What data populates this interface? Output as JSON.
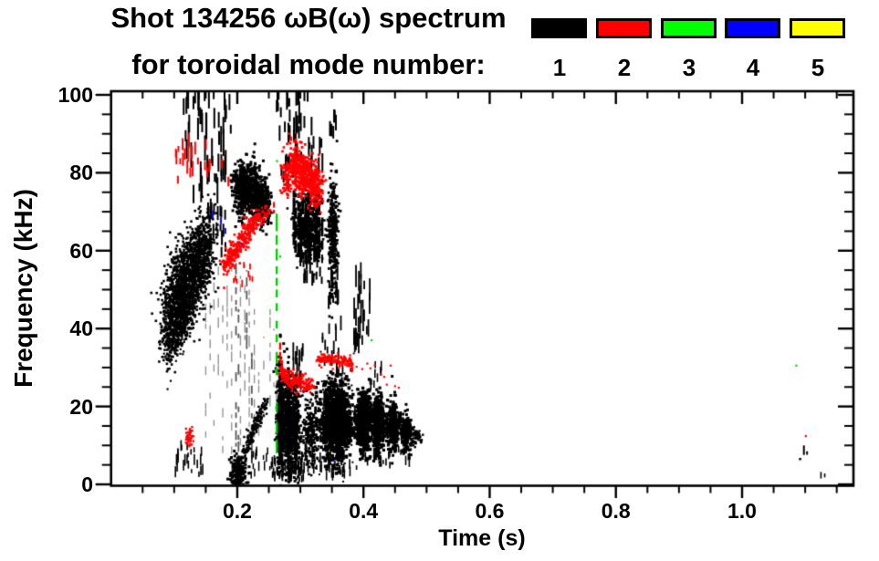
{
  "header": {
    "title_line1": "Shot 134256 ωB(ω) spectrum",
    "title_line2": "for toroidal mode number:"
  },
  "legend": {
    "entries": [
      {
        "label": "1",
        "color": "#000000"
      },
      {
        "label": "2",
        "color": "#ff0000"
      },
      {
        "label": "3",
        "color": "#00ff00"
      },
      {
        "label": "4",
        "color": "#0000ff"
      },
      {
        "label": "5",
        "color": "#ffff00"
      }
    ]
  },
  "axes": {
    "x": {
      "label": "Time (s)",
      "tick_values": [
        0.2,
        0.4,
        0.6,
        0.8,
        1.0
      ],
      "tick_labels": [
        "0.2",
        "0.4",
        "0.6",
        "0.8",
        "1.0"
      ],
      "minor_step": 0.05,
      "range": [
        0,
        1.1765
      ]
    },
    "y": {
      "label": "Frequency (kHz)",
      "tick_values": [
        0,
        20,
        40,
        60,
        80,
        100
      ],
      "tick_labels": [
        "0",
        "20",
        "40",
        "60",
        "80",
        "100"
      ],
      "minor_step": 5,
      "range": [
        0,
        101
      ]
    }
  },
  "chart_data": {
    "type": "scatter",
    "title": "Shot 134256 ωB(ω) spectrum for toroidal mode number: 1-5",
    "xlabel": "Time (s)",
    "ylabel": "Frequency (kHz)",
    "xlim": [
      0,
      1.1765
    ],
    "ylim": [
      0,
      101
    ],
    "grid": false,
    "legend_position": "top-right",
    "series_legend": [
      {
        "name": "n=1",
        "color_key": "k"
      },
      {
        "name": "n=2",
        "color_key": "r"
      },
      {
        "name": "n=3",
        "color_key": "g"
      },
      {
        "name": "n=4",
        "color_key": "b"
      },
      {
        "name": "n=5",
        "color_key": "y"
      }
    ],
    "palette": {
      "k": "#000000",
      "r": "#ff0000",
      "g": "#00cc00",
      "b": "#1111dd",
      "y": "#f0e000",
      "gy": "rgba(0,0,0,0.42)",
      "kd": "rgba(0,0,0,0.66)"
    },
    "clusters": [
      {
        "type": "diag",
        "c": "k",
        "t0": 0.085,
        "f0": 41,
        "t1": 0.157,
        "f1": 62,
        "st": 0.007,
        "sf": 5.5,
        "n": 1500,
        "d": 2.6
      },
      {
        "type": "diag",
        "c": "k",
        "t0": 0.09,
        "f0": 34,
        "t1": 0.128,
        "f1": 45,
        "st": 0.004,
        "sf": 3,
        "n": 260,
        "d": 2.2
      },
      {
        "type": "blob",
        "c": "k",
        "t": 0.118,
        "f": 52,
        "st": 0.01,
        "sf": 6,
        "n": 300,
        "d": 2.6
      },
      {
        "type": "specks",
        "c": "k",
        "t0": 0.1,
        "t1": 0.148,
        "f0": 1.5,
        "f1": 9,
        "n": 26,
        "l0": 1,
        "l1": 3,
        "lw": 1.6
      },
      {
        "type": "specks",
        "c": "k",
        "t0": 0.113,
        "t1": 0.19,
        "f0": 72,
        "f1": 99,
        "n": 55,
        "l0": 2,
        "l1": 7,
        "lw": 2
      },
      {
        "type": "specks",
        "c": "k",
        "t0": 0.152,
        "t1": 0.182,
        "f0": 58,
        "f1": 70,
        "n": 20,
        "l0": 1.5,
        "l1": 4,
        "lw": 2
      },
      {
        "type": "blob",
        "c": "k",
        "t": 0.205,
        "f": 75.5,
        "st": 0.007,
        "sf": 3.6,
        "n": 230,
        "d": 3
      },
      {
        "type": "blob",
        "c": "k",
        "t": 0.219,
        "f": 77,
        "st": 0.007,
        "sf": 3.4,
        "n": 230,
        "d": 3
      },
      {
        "type": "blob",
        "c": "k",
        "t": 0.233,
        "f": 74.5,
        "st": 0.006,
        "sf": 3.2,
        "n": 180,
        "d": 3
      },
      {
        "type": "blob",
        "c": "k",
        "t": 0.244,
        "f": 71.5,
        "st": 0.005,
        "sf": 2.6,
        "n": 120,
        "d": 3
      },
      {
        "type": "vlines",
        "c": "gy",
        "lw": 1.4,
        "cov": 0.5,
        "lines": [
          [
            0.15,
            12,
            50
          ],
          [
            0.157,
            22,
            55
          ],
          [
            0.163,
            15,
            52
          ],
          [
            0.17,
            28,
            56
          ],
          [
            0.177,
            8,
            46
          ],
          [
            0.184,
            18,
            56
          ],
          [
            0.191,
            4,
            57
          ],
          [
            0.205,
            10,
            55
          ],
          [
            0.212,
            24,
            57
          ],
          [
            0.219,
            4,
            50
          ],
          [
            0.227,
            12,
            46
          ],
          [
            0.234,
            8,
            40
          ],
          [
            0.242,
            15,
            38
          ],
          [
            0.252,
            20,
            45
          ],
          [
            0.258,
            25,
            40
          ],
          [
            0.262,
            20,
            34
          ]
        ]
      },
      {
        "type": "vlines",
        "c": "kd",
        "lw": 1.8,
        "cov": 0.6,
        "lines": [
          [
            0.198,
            1,
            58
          ],
          [
            0.202,
            5,
            45
          ],
          [
            0.215,
            30,
            55
          ],
          [
            0.223,
            8,
            38
          ]
        ]
      },
      {
        "type": "blob",
        "c": "k",
        "t": 0.202,
        "f": 3.2,
        "st": 0.006,
        "sf": 2,
        "n": 170,
        "d": 3
      },
      {
        "type": "diag",
        "c": "k",
        "t0": 0.211,
        "f0": 8.5,
        "t1": 0.247,
        "f1": 21.5,
        "st": 0.0018,
        "sf": 1.1,
        "n": 170,
        "d": 2.4
      },
      {
        "type": "specks",
        "c": "k",
        "t0": 0.218,
        "t1": 0.26,
        "f0": 1,
        "f1": 8,
        "n": 18,
        "l0": 1,
        "l1": 2.5,
        "lw": 1.5
      },
      {
        "type": "stripes",
        "c": "k",
        "t0": 0.287,
        "t1": 0.336,
        "k": 13,
        "f0": 57,
        "f1": 76,
        "fv": 6,
        "lw": 3,
        "cov": 0.85
      },
      {
        "type": "blob",
        "c": "k",
        "t": 0.311,
        "f": 66,
        "st": 0.011,
        "sf": 4.5,
        "n": 380,
        "d": 2.6
      },
      {
        "type": "specks",
        "c": "k",
        "t0": 0.3,
        "t1": 0.335,
        "f0": 51,
        "f1": 57,
        "n": 16,
        "l0": 1.5,
        "l1": 4,
        "lw": 2
      },
      {
        "type": "specks",
        "c": "k",
        "t0": 0.27,
        "t1": 0.335,
        "f0": 75,
        "f1": 88,
        "n": 24,
        "l0": 1.5,
        "l1": 5,
        "lw": 2
      },
      {
        "type": "specks",
        "c": "k",
        "t0": 0.262,
        "t1": 0.318,
        "f0": 87,
        "f1": 100,
        "n": 28,
        "l0": 2,
        "l1": 6,
        "lw": 2
      },
      {
        "type": "specks",
        "c": "k",
        "t0": 0.345,
        "t1": 0.357,
        "f0": 86,
        "f1": 94,
        "n": 8,
        "l0": 2,
        "l1": 4,
        "lw": 2
      },
      {
        "type": "blob",
        "c": "k",
        "t": 0.352,
        "f": 65,
        "st": 0.004,
        "sf": 7.5,
        "n": 300,
        "d": 2.8
      },
      {
        "type": "specks",
        "c": "k",
        "t0": 0.344,
        "t1": 0.362,
        "f0": 44,
        "f1": 54,
        "n": 14,
        "l0": 1.5,
        "l1": 4,
        "lw": 2
      },
      {
        "type": "blob",
        "c": "k",
        "t": 0.269,
        "f": 17,
        "st": 0.0032,
        "sf": 6.5,
        "n": 480,
        "d": 3
      },
      {
        "type": "blob",
        "c": "k",
        "t": 0.281,
        "f": 15.5,
        "st": 0.003,
        "sf": 6,
        "n": 420,
        "d": 3
      },
      {
        "type": "blob",
        "c": "k",
        "t": 0.292,
        "f": 14.5,
        "st": 0.0035,
        "sf": 5.5,
        "n": 330,
        "d": 2.8
      },
      {
        "type": "blob",
        "c": "k",
        "t": 0.316,
        "f": 13.5,
        "st": 0.007,
        "sf": 4.5,
        "n": 260,
        "d": 2.6
      },
      {
        "type": "specks",
        "c": "k",
        "t0": 0.255,
        "t1": 0.305,
        "f0": 0.5,
        "f1": 5,
        "n": 40,
        "l0": 1,
        "l1": 3,
        "lw": 1.8
      },
      {
        "type": "specks",
        "c": "k",
        "t0": 0.288,
        "t1": 0.305,
        "f0": 23,
        "f1": 33,
        "n": 14,
        "l0": 2,
        "l1": 5,
        "lw": 1.8
      },
      {
        "type": "blob",
        "c": "k",
        "t": 0.356,
        "f": 16.5,
        "st": 0.011,
        "sf": 4.8,
        "n": 950,
        "d": 3.6
      },
      {
        "type": "blob",
        "c": "k",
        "t": 0.356,
        "f": 17,
        "st": 0.014,
        "sf": 7,
        "n": 220,
        "d": 2
      },
      {
        "type": "blob",
        "c": "k",
        "t": 0.401,
        "f": 16.5,
        "st": 0.0058,
        "sf": 4.2,
        "n": 470,
        "d": 3.4
      },
      {
        "type": "blob",
        "c": "k",
        "t": 0.424,
        "f": 15.5,
        "st": 0.005,
        "sf": 3.6,
        "n": 360,
        "d": 3.2
      },
      {
        "type": "blob",
        "c": "k",
        "t": 0.447,
        "f": 14.8,
        "st": 0.0045,
        "sf": 3.2,
        "n": 290,
        "d": 3
      },
      {
        "type": "blob",
        "c": "k",
        "t": 0.468,
        "f": 13,
        "st": 0.004,
        "sf": 2.4,
        "n": 170,
        "d": 3
      },
      {
        "type": "diag",
        "c": "k",
        "t0": 0.475,
        "f0": 12.5,
        "t1": 0.49,
        "f1": 12,
        "st": 0.003,
        "sf": 1.4,
        "n": 60,
        "d": 2.4
      },
      {
        "type": "specks",
        "c": "k",
        "t0": 0.33,
        "t1": 0.47,
        "f0": 10,
        "f1": 17,
        "n": 110,
        "l0": 1,
        "l1": 3,
        "lw": 2
      },
      {
        "type": "specks",
        "c": "k",
        "t0": 0.3,
        "t1": 0.39,
        "f0": 0.5,
        "f1": 7,
        "n": 40,
        "l0": 1,
        "l1": 3,
        "lw": 1.6
      },
      {
        "type": "specks",
        "c": "k",
        "t0": 0.4,
        "t1": 0.475,
        "f0": 4,
        "f1": 9,
        "n": 22,
        "l0": 1,
        "l1": 2.5,
        "lw": 1.6
      },
      {
        "type": "specks",
        "c": "k",
        "t0": 0.385,
        "t1": 0.412,
        "f0": 30,
        "f1": 53,
        "n": 26,
        "l0": 2,
        "l1": 6,
        "lw": 1.8
      },
      {
        "type": "specks",
        "c": "k",
        "t0": 0.335,
        "t1": 0.368,
        "f0": 27,
        "f1": 40,
        "n": 18,
        "l0": 1.5,
        "l1": 4,
        "lw": 1.8
      },
      {
        "type": "specks",
        "c": "k",
        "t0": 0.41,
        "t1": 0.43,
        "f0": 24,
        "f1": 30,
        "n": 10,
        "l0": 1,
        "l1": 3,
        "lw": 1.6
      },
      {
        "type": "vlines",
        "c": "k",
        "lw": 2,
        "cov": 0.7,
        "lines": [
          [
            1.098,
            5,
            10
          ],
          [
            1.103,
            5,
            8.5
          ]
        ]
      },
      {
        "type": "dots",
        "c": "k",
        "d": 2.5,
        "pts": [
          [
            1.092,
            6.5
          ]
        ]
      },
      {
        "type": "vlines",
        "c": "k",
        "lw": 1.6,
        "cov": 0.8,
        "lines": [
          [
            1.125,
            1.5,
            3.2
          ],
          [
            1.131,
            1.8,
            2.8
          ],
          [
            1.14,
            1.4,
            2.6
          ]
        ]
      },
      {
        "type": "specks",
        "c": "r",
        "t0": 0.102,
        "t1": 0.158,
        "f0": 77,
        "f1": 87,
        "n": 22,
        "l0": 1.5,
        "l1": 4,
        "lw": 2
      },
      {
        "type": "vlines",
        "c": "r",
        "lw": 2.2,
        "cov": 0.8,
        "lines": [
          [
            0.176,
            80,
            83.5
          ],
          [
            0.186,
            76.5,
            79
          ]
        ]
      },
      {
        "type": "blob",
        "c": "r",
        "t": 0.125,
        "f": 12.3,
        "st": 0.004,
        "sf": 1.2,
        "n": 40,
        "d": 2.4
      },
      {
        "type": "diag",
        "c": "r",
        "t0": 0.178,
        "f0": 56,
        "t1": 0.232,
        "f1": 68.5,
        "st": 0.003,
        "sf": 1.7,
        "n": 280,
        "d": 2.6
      },
      {
        "type": "diag",
        "c": "r",
        "t0": 0.232,
        "f0": 68.5,
        "t1": 0.252,
        "f1": 70,
        "st": 0.002,
        "sf": 1.2,
        "n": 50,
        "d": 2.2
      },
      {
        "type": "specks",
        "c": "r",
        "t0": 0.19,
        "t1": 0.225,
        "f0": 50,
        "f1": 56,
        "n": 10,
        "l0": 1,
        "l1": 2,
        "lw": 1.8
      },
      {
        "type": "blob",
        "c": "r",
        "t": 0.278,
        "f": 78.5,
        "st": 0.004,
        "sf": 2.6,
        "n": 80,
        "d": 2.6
      },
      {
        "type": "blob",
        "c": "r",
        "t": 0.292,
        "f": 82,
        "st": 0.005,
        "sf": 3,
        "n": 140,
        "d": 2.8
      },
      {
        "type": "blob",
        "c": "r",
        "t": 0.305,
        "f": 80,
        "st": 0.005,
        "sf": 3,
        "n": 150,
        "d": 2.8
      },
      {
        "type": "blob",
        "c": "r",
        "t": 0.318,
        "f": 78,
        "st": 0.005,
        "sf": 2.8,
        "n": 140,
        "d": 2.8
      },
      {
        "type": "blob",
        "c": "r",
        "t": 0.329,
        "f": 76,
        "st": 0.004,
        "sf": 2.4,
        "n": 90,
        "d": 2.6
      },
      {
        "type": "vlines",
        "c": "r",
        "lw": 2.2,
        "cov": 0.8,
        "lines": [
          [
            0.258,
            69.5,
            72.5
          ]
        ]
      },
      {
        "type": "vlines",
        "c": "r",
        "lw": 2.4,
        "cov": 0.85,
        "lines": [
          [
            0.268,
            29,
            37
          ],
          [
            0.271,
            27,
            33
          ]
        ]
      },
      {
        "type": "diag",
        "c": "r",
        "t0": 0.27,
        "f0": 28.5,
        "t1": 0.318,
        "f1": 24.8,
        "st": 0.003,
        "sf": 1.1,
        "n": 170,
        "d": 2.5
      },
      {
        "type": "trace",
        "c": "r",
        "sf": 0.8,
        "n": 150,
        "d": 2.3,
        "pts": [
          [
            0.325,
            31.2
          ],
          [
            0.338,
            32.6
          ],
          [
            0.35,
            32.2
          ],
          [
            0.362,
            31.4
          ],
          [
            0.372,
            31.8
          ],
          [
            0.383,
            31.2
          ]
        ]
      },
      {
        "type": "dots",
        "c": "r",
        "d": 2.2,
        "pts": [
          [
            0.389,
            30.2
          ],
          [
            0.398,
            29.6
          ],
          [
            0.406,
            31
          ],
          [
            0.411,
            29.8
          ],
          [
            0.418,
            30.6
          ],
          [
            0.428,
            28.2
          ],
          [
            0.433,
            27.6
          ],
          [
            0.437,
            25.6
          ],
          [
            0.45,
            25.2
          ],
          [
            0.456,
            24.8
          ],
          [
            0.443,
            30.5
          ]
        ]
      },
      {
        "type": "dots",
        "c": "r",
        "d": 2.2,
        "pts": [
          [
            0.222,
            70.5
          ],
          [
            0.247,
            71.5
          ],
          [
            1.101,
            12.4
          ]
        ]
      },
      {
        "type": "vsegs",
        "c": "g",
        "t": 0.2625,
        "lw": 2.4,
        "segs": [
          [
            65,
            69.5
          ],
          [
            61.5,
            64
          ],
          [
            57.5,
            60.5
          ],
          [
            54,
            56
          ],
          [
            51,
            53
          ],
          [
            48,
            50
          ],
          [
            44.5,
            46.5
          ],
          [
            40,
            42
          ],
          [
            36.5,
            38.5
          ],
          [
            31,
            34
          ],
          [
            28,
            30
          ],
          [
            18.5,
            21
          ],
          [
            13,
            16
          ],
          [
            8,
            11.5
          ]
        ]
      },
      {
        "type": "dots",
        "c": "g",
        "d": 2.2,
        "pts": [
          [
            0.263,
            83
          ],
          [
            0.413,
            37
          ],
          [
            1.086,
            30.5
          ],
          [
            0.268,
            58.5
          ]
        ]
      },
      {
        "type": "vsegs",
        "c": "b",
        "t": 0.161,
        "lw": 2.2,
        "segs": [
          [
            68.3,
            70.3
          ]
        ]
      },
      {
        "type": "vsegs",
        "c": "b",
        "t": 0.174,
        "lw": 2.2,
        "segs": [
          [
            66.8,
            68.6
          ]
        ]
      },
      {
        "type": "vsegs",
        "c": "b",
        "t": 0.181,
        "lw": 2.2,
        "segs": [
          [
            64.3,
            65.8
          ]
        ]
      },
      {
        "type": "dots",
        "c": "b",
        "d": 2,
        "pts": [
          [
            0.353,
            6
          ],
          [
            0.207,
            61.8
          ]
        ]
      }
    ]
  }
}
